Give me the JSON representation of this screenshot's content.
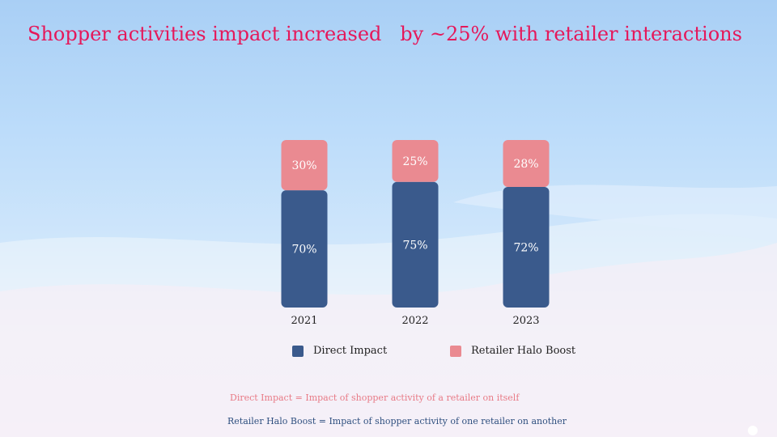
{
  "title": "Shopper activities impact increased   by ~25% with retailer interactions",
  "colors": {
    "direct": "#3a5a8c",
    "halo": "#ea8a91",
    "title": "#e5185a"
  },
  "chart_data": {
    "type": "bar",
    "stacked": true,
    "categories": [
      "2021",
      "2022",
      "2023"
    ],
    "series": [
      {
        "name": "Direct Impact",
        "values": [
          70,
          75,
          72
        ],
        "labels": [
          "70%",
          "75%",
          "72%"
        ]
      },
      {
        "name": "Retailer Halo Boost",
        "values": [
          30,
          25,
          28
        ],
        "labels": [
          "30%",
          "25%",
          "28%"
        ]
      }
    ],
    "ylim": [
      0,
      100
    ],
    "title": "",
    "xlabel": "",
    "ylabel": "",
    "legend": "bottom"
  },
  "legend": {
    "direct_label": "Direct Impact",
    "halo_label": "Retailer Halo Boost"
  },
  "notes": {
    "direct": "Direct Impact = Impact of shopper activity of a retailer on itself",
    "halo": "Retailer Halo Boost = Impact of shopper activity of one retailer on another"
  }
}
